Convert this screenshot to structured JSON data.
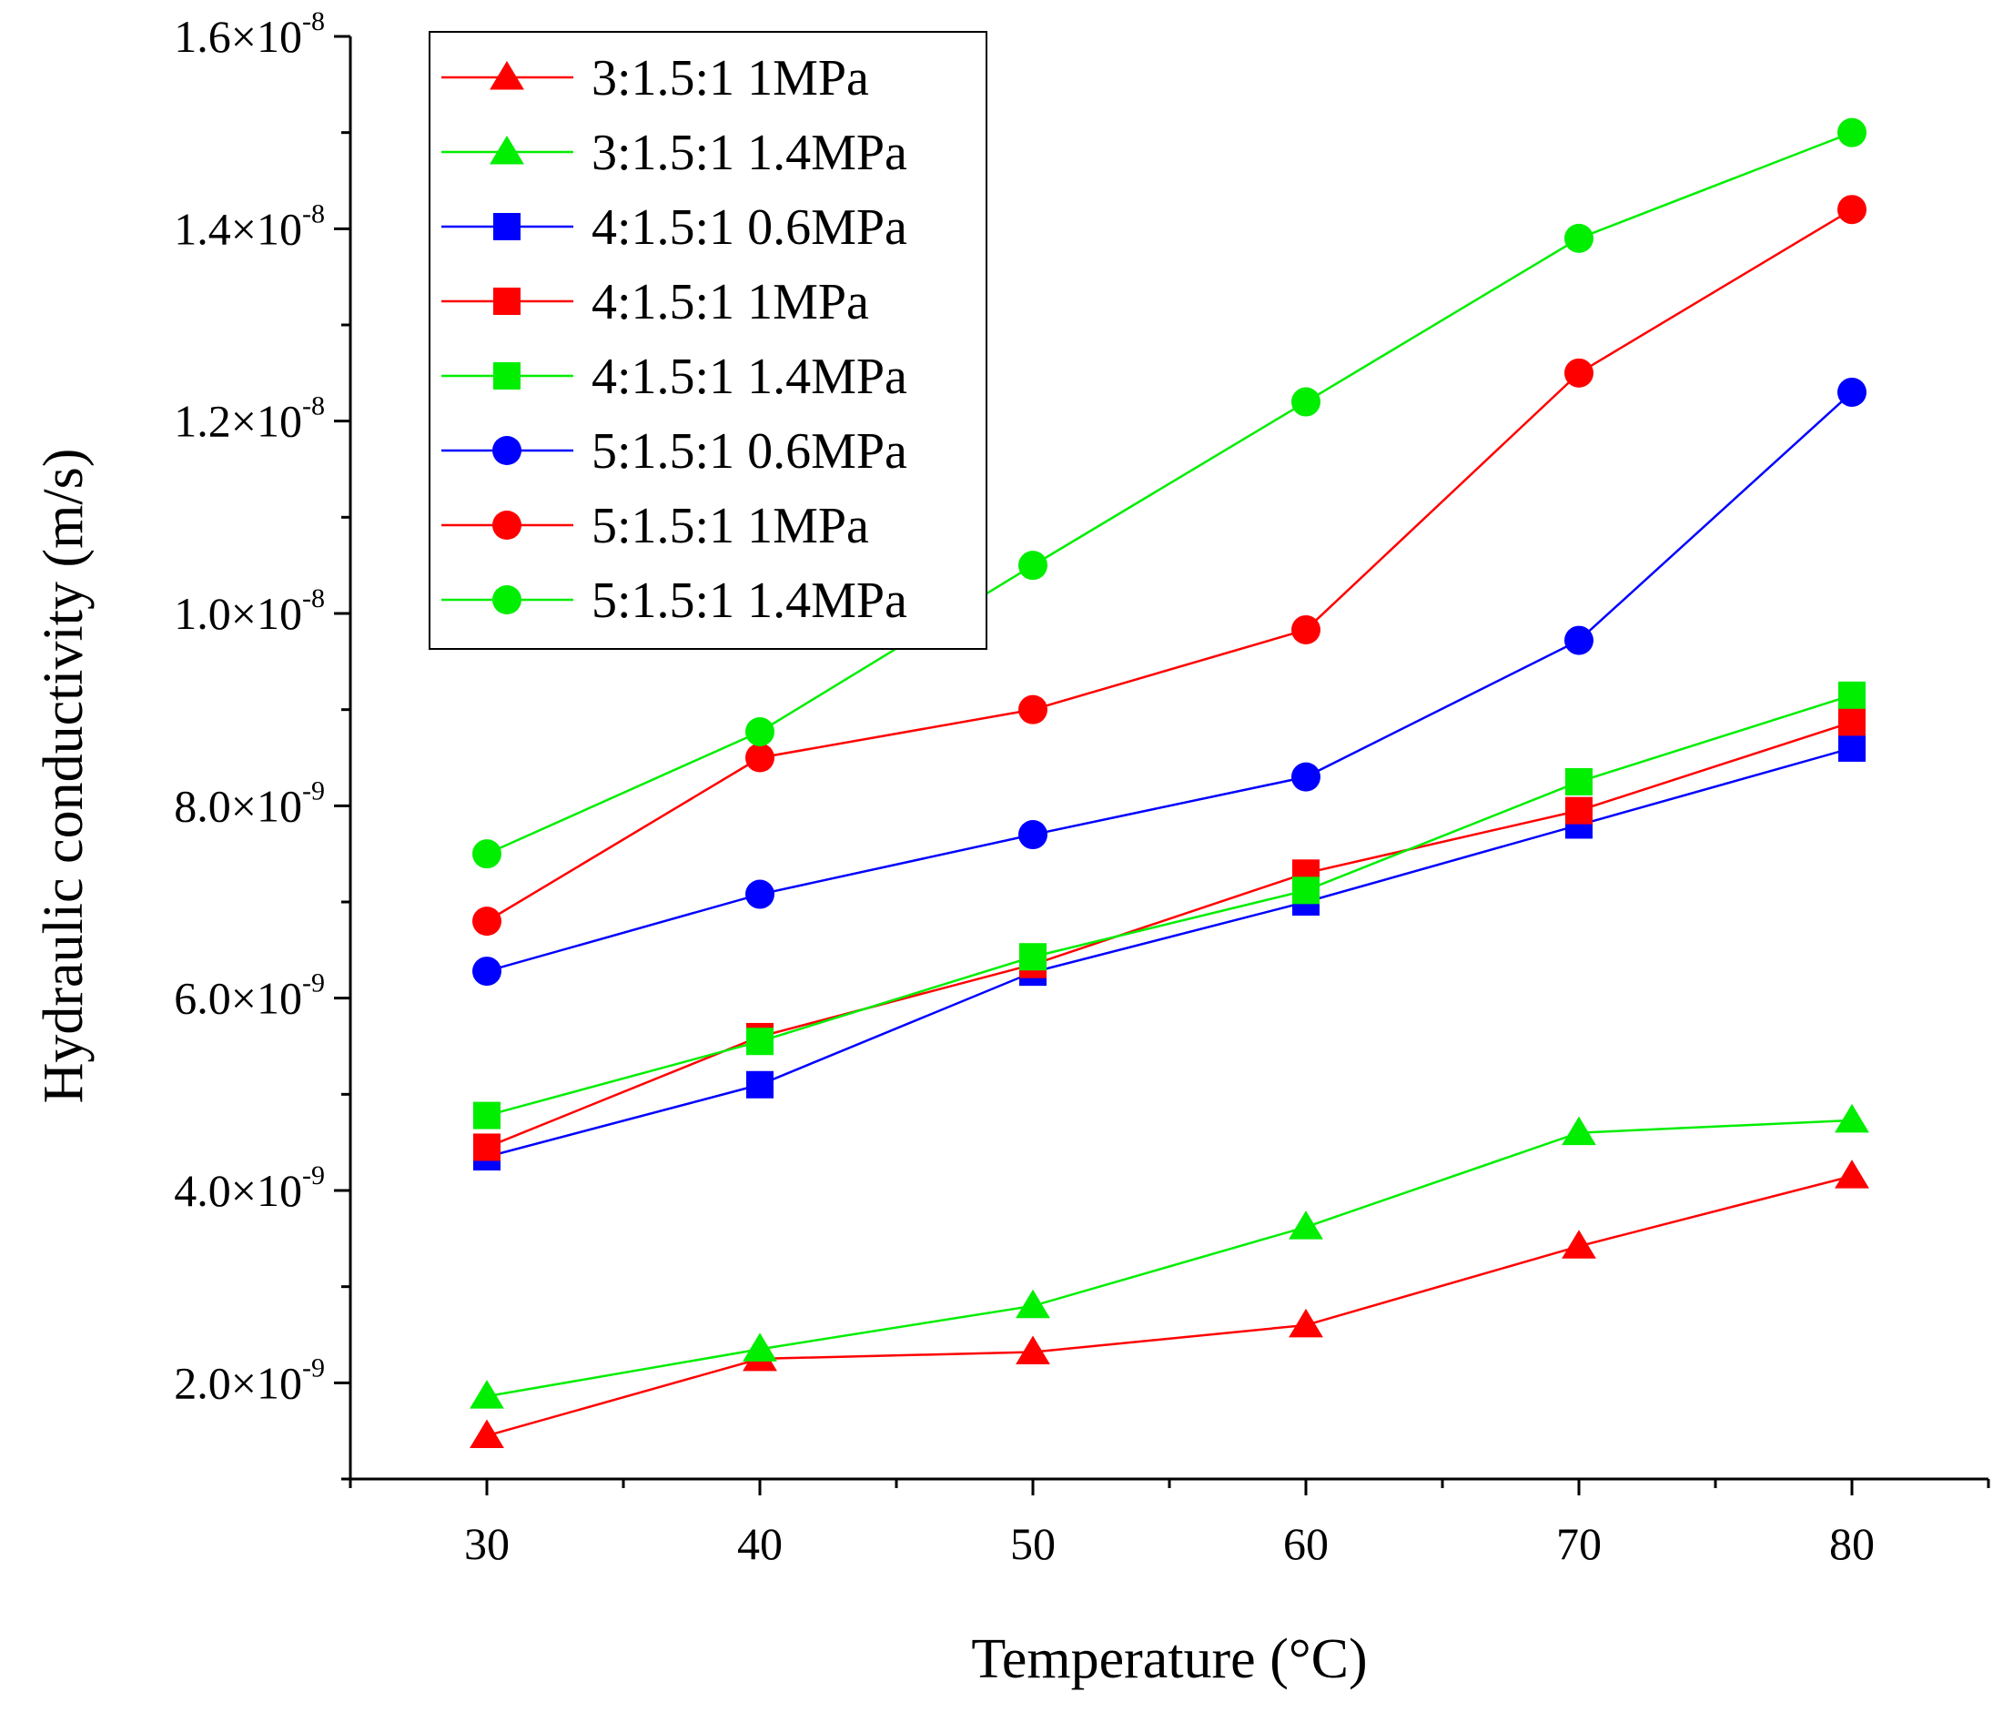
{
  "chart_data": {
    "type": "line",
    "xlabel": "Temperature (°C)",
    "ylabel": "Hydraulic conductivity (m/s)",
    "x": [
      30,
      40,
      50,
      60,
      70,
      80
    ],
    "xticks": [
      {
        "value": 30,
        "label": "30"
      },
      {
        "value": 40,
        "label": "40"
      },
      {
        "value": 50,
        "label": "50"
      },
      {
        "value": 60,
        "label": "60"
      },
      {
        "value": 70,
        "label": "70"
      },
      {
        "value": 80,
        "label": "80"
      }
    ],
    "xlim": [
      25,
      85
    ],
    "ylim": [
      1e-09,
      1.6e-08
    ],
    "yticks": [
      {
        "value": 2e-09,
        "mantissa": "2.0",
        "exponent": "-9"
      },
      {
        "value": 4e-09,
        "mantissa": "4.0",
        "exponent": "-9"
      },
      {
        "value": 6e-09,
        "mantissa": "6.0",
        "exponent": "-9"
      },
      {
        "value": 8e-09,
        "mantissa": "8.0",
        "exponent": "-9"
      },
      {
        "value": 1e-08,
        "mantissa": "1.0",
        "exponent": "-8"
      },
      {
        "value": 1.2e-08,
        "mantissa": "1.2",
        "exponent": "-8"
      },
      {
        "value": 1.4e-08,
        "mantissa": "1.4",
        "exponent": "-8"
      },
      {
        "value": 1.6e-08,
        "mantissa": "1.6",
        "exponent": "-8"
      }
    ],
    "grid": false,
    "legend_position": "top-left",
    "series": [
      {
        "name": "3:1.5:1 1MPa",
        "color": "#ff0000",
        "marker": "triangle",
        "values": [
          1.45e-09,
          2.25e-09,
          2.32e-09,
          2.6e-09,
          3.42e-09,
          4.15e-09
        ]
      },
      {
        "name": "3:1.5:1 1.4MPa",
        "color": "#00ee00",
        "marker": "triangle",
        "values": [
          1.86e-09,
          2.35e-09,
          2.8e-09,
          3.62e-09,
          4.6e-09,
          4.73e-09
        ]
      },
      {
        "name": "4:1.5:1 0.6MPa",
        "color": "#0000ff",
        "marker": "square",
        "values": [
          4.35e-09,
          5.1e-09,
          6.27e-09,
          7e-09,
          7.8e-09,
          8.6e-09
        ]
      },
      {
        "name": "4:1.5:1 1MPa",
        "color": "#ff0000",
        "marker": "square",
        "values": [
          4.45e-09,
          5.6e-09,
          6.35e-09,
          7.3e-09,
          7.95e-09,
          8.87e-09
        ]
      },
      {
        "name": "4:1.5:1 1.4MPa",
        "color": "#00ee00",
        "marker": "square",
        "values": [
          4.78e-09,
          5.55e-09,
          6.43e-09,
          7.12e-09,
          8.25e-09,
          9.15e-09
        ]
      },
      {
        "name": "5:1.5:1 0.6MPa",
        "color": "#0000ff",
        "marker": "circle",
        "values": [
          6.28e-09,
          7.08e-09,
          7.7e-09,
          8.3e-09,
          9.72e-09,
          1.23e-08
        ]
      },
      {
        "name": "5:1.5:1 1MPa",
        "color": "#ff0000",
        "marker": "circle",
        "values": [
          6.8e-09,
          8.5e-09,
          9e-09,
          9.83e-09,
          1.25e-08,
          1.42e-08
        ]
      },
      {
        "name": "5:1.5:1 1.4MPa",
        "color": "#00ee00",
        "marker": "circle",
        "values": [
          7.5e-09,
          8.77e-09,
          1.05e-08,
          1.22e-08,
          1.39e-08,
          1.5e-08
        ]
      }
    ]
  }
}
